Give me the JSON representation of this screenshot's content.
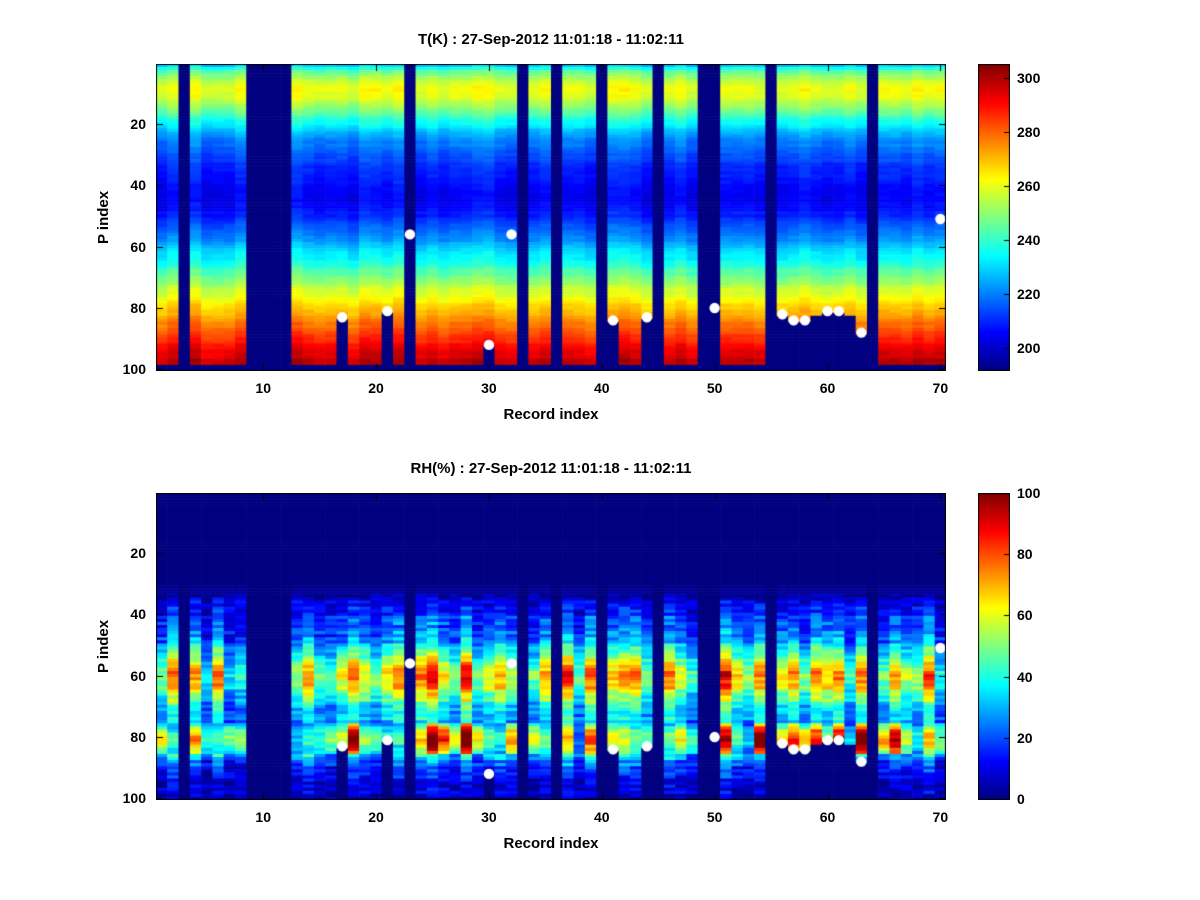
{
  "figure": {
    "background": "#ffffff"
  },
  "chart_data": [
    {
      "id": "temperature",
      "type": "heatmap",
      "title": "T(K) : 27-Sep-2012 11:01:18 - 11:02:11",
      "xlabel": "Record index",
      "ylabel": "P index",
      "colormap": "jet",
      "x_range": [
        1,
        70
      ],
      "y_range": [
        1,
        100
      ],
      "y_axis_direction": "reverse",
      "x_ticks": [
        10,
        20,
        30,
        40,
        50,
        60,
        70
      ],
      "y_ticks": [
        20,
        40,
        60,
        80,
        100
      ],
      "n_records": 70,
      "n_levels": 100,
      "caxis": [
        192,
        305
      ],
      "colorbar_ticks": [
        200,
        220,
        240,
        260,
        280,
        300
      ],
      "colorbar_position": "right",
      "grid": false,
      "profile": [
        [
          1,
          230
        ],
        [
          3,
          244
        ],
        [
          6,
          257
        ],
        [
          9,
          262
        ],
        [
          12,
          258
        ],
        [
          16,
          246
        ],
        [
          20,
          234
        ],
        [
          25,
          222
        ],
        [
          30,
          215
        ],
        [
          36,
          209
        ],
        [
          42,
          206
        ],
        [
          46,
          205
        ],
        [
          50,
          210
        ],
        [
          55,
          218
        ],
        [
          60,
          227
        ],
        [
          65,
          237
        ],
        [
          70,
          248
        ],
        [
          75,
          259
        ],
        [
          80,
          268
        ],
        [
          84,
          275
        ],
        [
          88,
          283
        ],
        [
          92,
          290
        ],
        [
          96,
          296
        ],
        [
          100,
          301
        ]
      ],
      "value_mode": "offset",
      "column_variation": 6,
      "row_variation": 2.5,
      "cell_noise": 3,
      "noise_floor": 0,
      "masked_bottom_rows": 2,
      "lower_band": null,
      "seed": 1234,
      "missing_records": [
        3,
        9,
        10,
        11,
        12,
        23,
        33,
        36,
        40,
        45,
        49,
        50,
        55,
        64
      ],
      "cloud_masks": [
        {
          "record": 17,
          "from_level": 84
        },
        {
          "record": 21,
          "from_level": 82
        },
        {
          "record": 30,
          "from_level": 93
        },
        {
          "record": 41,
          "from_level": 85
        },
        {
          "record": 44,
          "from_level": 84
        },
        {
          "record": 56,
          "from_level": 83
        },
        {
          "record": 57,
          "from_level": 85
        },
        {
          "record": 58,
          "from_level": 85
        },
        {
          "record": 59,
          "from_level": 83
        },
        {
          "record": 60,
          "from_level": 82
        },
        {
          "record": 61,
          "from_level": 82
        },
        {
          "record": 62,
          "from_level": 83
        },
        {
          "record": 63,
          "from_level": 89
        }
      ],
      "markers": [
        {
          "record": 17,
          "level": 83
        },
        {
          "record": 21,
          "level": 81
        },
        {
          "record": 23,
          "level": 56
        },
        {
          "record": 30,
          "level": 92
        },
        {
          "record": 32,
          "level": 56
        },
        {
          "record": 41,
          "level": 84
        },
        {
          "record": 44,
          "level": 83
        },
        {
          "record": 50,
          "level": 80
        },
        {
          "record": 56,
          "level": 82
        },
        {
          "record": 57,
          "level": 84
        },
        {
          "record": 58,
          "level": 84
        },
        {
          "record": 60,
          "level": 81
        },
        {
          "record": 61,
          "level": 81
        },
        {
          "record": 63,
          "level": 88
        },
        {
          "record": 70,
          "level": 51
        }
      ],
      "marker_color": "#ffffff",
      "missing_color_value": "minimum-of-caxis"
    },
    {
      "id": "humidity",
      "type": "heatmap",
      "title": "RH(%) : 27-Sep-2012 11:01:18 - 11:02:11",
      "xlabel": "Record index",
      "ylabel": "P index",
      "colormap": "jet",
      "x_range": [
        1,
        70
      ],
      "y_range": [
        1,
        100
      ],
      "y_axis_direction": "reverse",
      "x_ticks": [
        10,
        20,
        30,
        40,
        50,
        60,
        70
      ],
      "y_ticks": [
        20,
        40,
        60,
        80,
        100
      ],
      "n_records": 70,
      "n_levels": 100,
      "caxis": [
        0,
        100
      ],
      "colorbar_ticks": [
        0,
        20,
        40,
        60,
        80,
        100
      ],
      "colorbar_position": "right",
      "grid": false,
      "profile": [
        [
          1,
          0
        ],
        [
          30,
          0
        ],
        [
          33,
          3
        ],
        [
          37,
          10
        ],
        [
          41,
          17
        ],
        [
          45,
          21
        ],
        [
          49,
          28
        ],
        [
          53,
          42
        ],
        [
          57,
          56
        ],
        [
          60,
          62
        ],
        [
          63,
          59
        ],
        [
          66,
          50
        ],
        [
          69,
          38
        ],
        [
          72,
          29
        ],
        [
          75,
          31
        ],
        [
          78,
          45
        ],
        [
          81,
          55
        ],
        [
          84,
          46
        ],
        [
          87,
          28
        ],
        [
          90,
          17
        ],
        [
          94,
          11
        ],
        [
          100,
          5
        ]
      ],
      "value_mode": "factor",
      "column_variation": 0.9,
      "row_variation": 7,
      "cell_noise": 14,
      "noise_floor": 4,
      "masked_bottom_rows": 0,
      "lower_band": {
        "from": 76,
        "to": 85,
        "base": 0.6,
        "var": 1.1
      },
      "seed": 99,
      "missing_records": [
        3,
        9,
        10,
        11,
        12,
        23,
        33,
        36,
        40,
        45,
        49,
        50,
        55,
        64
      ],
      "cloud_masks": [
        {
          "record": 17,
          "from_level": 84
        },
        {
          "record": 21,
          "from_level": 82
        },
        {
          "record": 30,
          "from_level": 93
        },
        {
          "record": 41,
          "from_level": 85
        },
        {
          "record": 44,
          "from_level": 84
        },
        {
          "record": 56,
          "from_level": 83
        },
        {
          "record": 57,
          "from_level": 85
        },
        {
          "record": 58,
          "from_level": 85
        },
        {
          "record": 59,
          "from_level": 83
        },
        {
          "record": 60,
          "from_level": 82
        },
        {
          "record": 61,
          "from_level": 82
        },
        {
          "record": 62,
          "from_level": 83
        },
        {
          "record": 63,
          "from_level": 89
        }
      ],
      "markers": [
        {
          "record": 17,
          "level": 83
        },
        {
          "record": 21,
          "level": 81
        },
        {
          "record": 23,
          "level": 56
        },
        {
          "record": 30,
          "level": 92
        },
        {
          "record": 32,
          "level": 56
        },
        {
          "record": 41,
          "level": 84
        },
        {
          "record": 44,
          "level": 83
        },
        {
          "record": 50,
          "level": 80
        },
        {
          "record": 56,
          "level": 82
        },
        {
          "record": 57,
          "level": 84
        },
        {
          "record": 58,
          "level": 84
        },
        {
          "record": 60,
          "level": 81
        },
        {
          "record": 61,
          "level": 81
        },
        {
          "record": 63,
          "level": 88
        },
        {
          "record": 70,
          "level": 51
        }
      ],
      "marker_color": "#ffffff",
      "missing_color_value": "minimum-of-caxis"
    }
  ]
}
